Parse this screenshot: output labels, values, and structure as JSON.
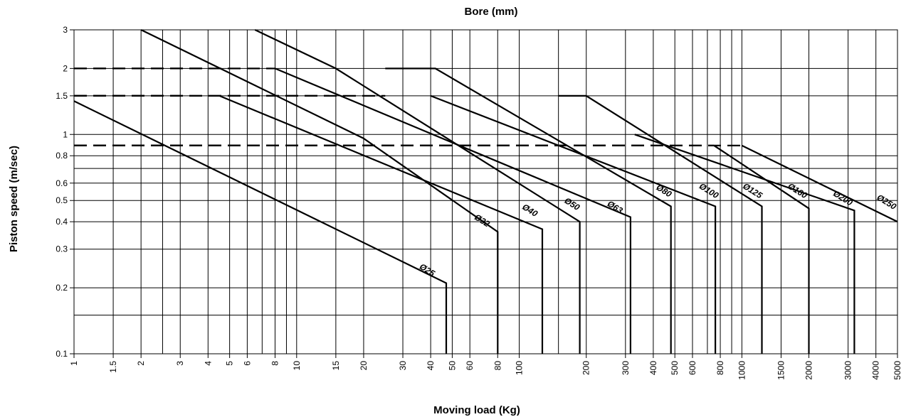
{
  "chart_data": {
    "type": "line",
    "title": "Bore (mm)",
    "xlabel": "Moving load (Kg)",
    "ylabel": "Piston speed (m/sec)",
    "x_scale": "log",
    "y_scale": "log",
    "xlim": [
      1,
      5000
    ],
    "ylim": [
      0.1,
      3
    ],
    "grid": true,
    "x_ticks": [
      {
        "v": 1,
        "label": "1"
      },
      {
        "v": 1.5,
        "label": "1.5"
      },
      {
        "v": 2,
        "label": "2"
      },
      {
        "v": 3,
        "label": "3"
      },
      {
        "v": 4,
        "label": "4"
      },
      {
        "v": 5,
        "label": "5"
      },
      {
        "v": 6,
        "label": "6"
      },
      {
        "v": 8,
        "label": "8"
      },
      {
        "v": 10,
        "label": "10"
      },
      {
        "v": 15,
        "label": "15"
      },
      {
        "v": 20,
        "label": "20"
      },
      {
        "v": 30,
        "label": "30"
      },
      {
        "v": 40,
        "label": "40"
      },
      {
        "v": 50,
        "label": "50"
      },
      {
        "v": 60,
        "label": "60"
      },
      {
        "v": 80,
        "label": "80"
      },
      {
        "v": 100,
        "label": "100"
      },
      {
        "v": 200,
        "label": "200"
      },
      {
        "v": 300,
        "label": "300"
      },
      {
        "v": 400,
        "label": "400"
      },
      {
        "v": 500,
        "label": "500"
      },
      {
        "v": 600,
        "label": "600"
      },
      {
        "v": 800,
        "label": "800"
      },
      {
        "v": 1000,
        "label": "1000"
      },
      {
        "v": 1500,
        "label": "1500"
      },
      {
        "v": 2000,
        "label": "2000"
      },
      {
        "v": 3000,
        "label": "3000"
      },
      {
        "v": 4000,
        "label": "4000"
      },
      {
        "v": 5000,
        "label": "5000"
      }
    ],
    "x_minor_grid": [
      2.5,
      7,
      9,
      150,
      700,
      900
    ],
    "y_ticks": [
      {
        "v": 0.1,
        "label": "0.1"
      },
      {
        "v": 0.2,
        "label": "0.2"
      },
      {
        "v": 0.3,
        "label": "0.3"
      },
      {
        "v": 0.4,
        "label": "0.4"
      },
      {
        "v": 0.5,
        "label": "0.5"
      },
      {
        "v": 0.6,
        "label": "0.6"
      },
      {
        "v": 0.8,
        "label": "0.8"
      },
      {
        "v": 1,
        "label": "1"
      },
      {
        "v": 1.5,
        "label": "1.5"
      },
      {
        "v": 2,
        "label": "2"
      },
      {
        "v": 3,
        "label": "3"
      }
    ],
    "y_minor_grid": [
      0.15,
      0.7
    ],
    "series": [
      {
        "name": "Ø25",
        "dashed": [
          [
            1,
            1.5
          ],
          [
            3,
            1.5
          ]
        ],
        "points": [
          [
            1,
            1.42
          ],
          [
            47,
            0.21
          ],
          [
            47,
            0.1
          ]
        ]
      },
      {
        "name": "Ø32",
        "dashed": [
          [
            1,
            0.89
          ],
          [
            8,
            0.89
          ]
        ],
        "points": [
          [
            2,
            3
          ],
          [
            20,
            0.96
          ],
          [
            80,
            0.36
          ],
          [
            80,
            0.1
          ]
        ]
      },
      {
        "name": "Ø40",
        "dashed": [
          [
            1,
            2
          ],
          [
            4,
            2
          ]
        ],
        "points": [
          [
            4.5,
            1.5
          ],
          [
            127,
            0.37
          ],
          [
            127,
            0.1
          ]
        ]
      },
      {
        "name": "Ø50",
        "dashed": [
          [
            1,
            2
          ],
          [
            8,
            2
          ]
        ],
        "points": [
          [
            6.5,
            3
          ],
          [
            15,
            2
          ],
          [
            187,
            0.4
          ],
          [
            187,
            0.1
          ]
        ]
      },
      {
        "name": "Ø63",
        "dashed": [
          [
            1,
            1.5
          ],
          [
            14,
            1.5
          ]
        ],
        "points": [
          [
            8,
            2
          ],
          [
            316,
            0.42
          ],
          [
            316,
            0.1
          ]
        ]
      },
      {
        "name": "Ø80",
        "dashed": [
          [
            1,
            1.5
          ],
          [
            25,
            1.5
          ]
        ],
        "points": [
          [
            25,
            2
          ],
          [
            42,
            2
          ],
          [
            480,
            0.47
          ],
          [
            480,
            0.1
          ]
        ]
      },
      {
        "name": "Ø100",
        "dashed": [
          [
            1,
            0.89
          ],
          [
            300,
            0.89
          ]
        ],
        "points": [
          [
            40,
            1.5
          ],
          [
            760,
            0.47
          ],
          [
            760,
            0.1
          ]
        ]
      },
      {
        "name": "Ø125",
        "dashed": [
          [
            1,
            0.89
          ],
          [
            400,
            0.89
          ]
        ],
        "points": [
          [
            150,
            1.5
          ],
          [
            200,
            1.5
          ],
          [
            1230,
            0.47
          ],
          [
            1230,
            0.1
          ]
        ]
      },
      {
        "name": "Ø160",
        "dashed": [
          [
            1,
            0.89
          ],
          [
            750,
            0.89
          ]
        ],
        "points": [
          [
            750,
            0.89
          ],
          [
            2000,
            0.46
          ],
          [
            2000,
            0.1
          ]
        ]
      },
      {
        "name": "Ø200",
        "dashed": [
          [
            1,
            0.89
          ],
          [
            1000,
            0.89
          ]
        ],
        "points": [
          [
            330,
            1.0
          ],
          [
            3200,
            0.45
          ],
          [
            3200,
            0.1
          ]
        ]
      },
      {
        "name": "Ø250",
        "dashed": [],
        "points": [
          [
            1000,
            0.89
          ],
          [
            5000,
            0.4
          ]
        ]
      }
    ],
    "bore_labels": [
      {
        "text": "Ø25",
        "x": 38,
        "y": 0.235
      },
      {
        "text": "Ø32",
        "x": 67,
        "y": 0.395
      },
      {
        "text": "Ø40",
        "x": 110,
        "y": 0.44
      },
      {
        "text": "Ø50",
        "x": 170,
        "y": 0.47
      },
      {
        "text": "Ø63",
        "x": 265,
        "y": 0.455
      },
      {
        "text": "Ø80",
        "x": 440,
        "y": 0.54
      },
      {
        "text": "Ø100",
        "x": 700,
        "y": 0.54
      },
      {
        "text": "Ø125",
        "x": 1100,
        "y": 0.54
      },
      {
        "text": "Ø160",
        "x": 1750,
        "y": 0.54
      },
      {
        "text": "Ø200",
        "x": 2800,
        "y": 0.5
      },
      {
        "text": "Ø250",
        "x": 4400,
        "y": 0.48
      }
    ]
  }
}
